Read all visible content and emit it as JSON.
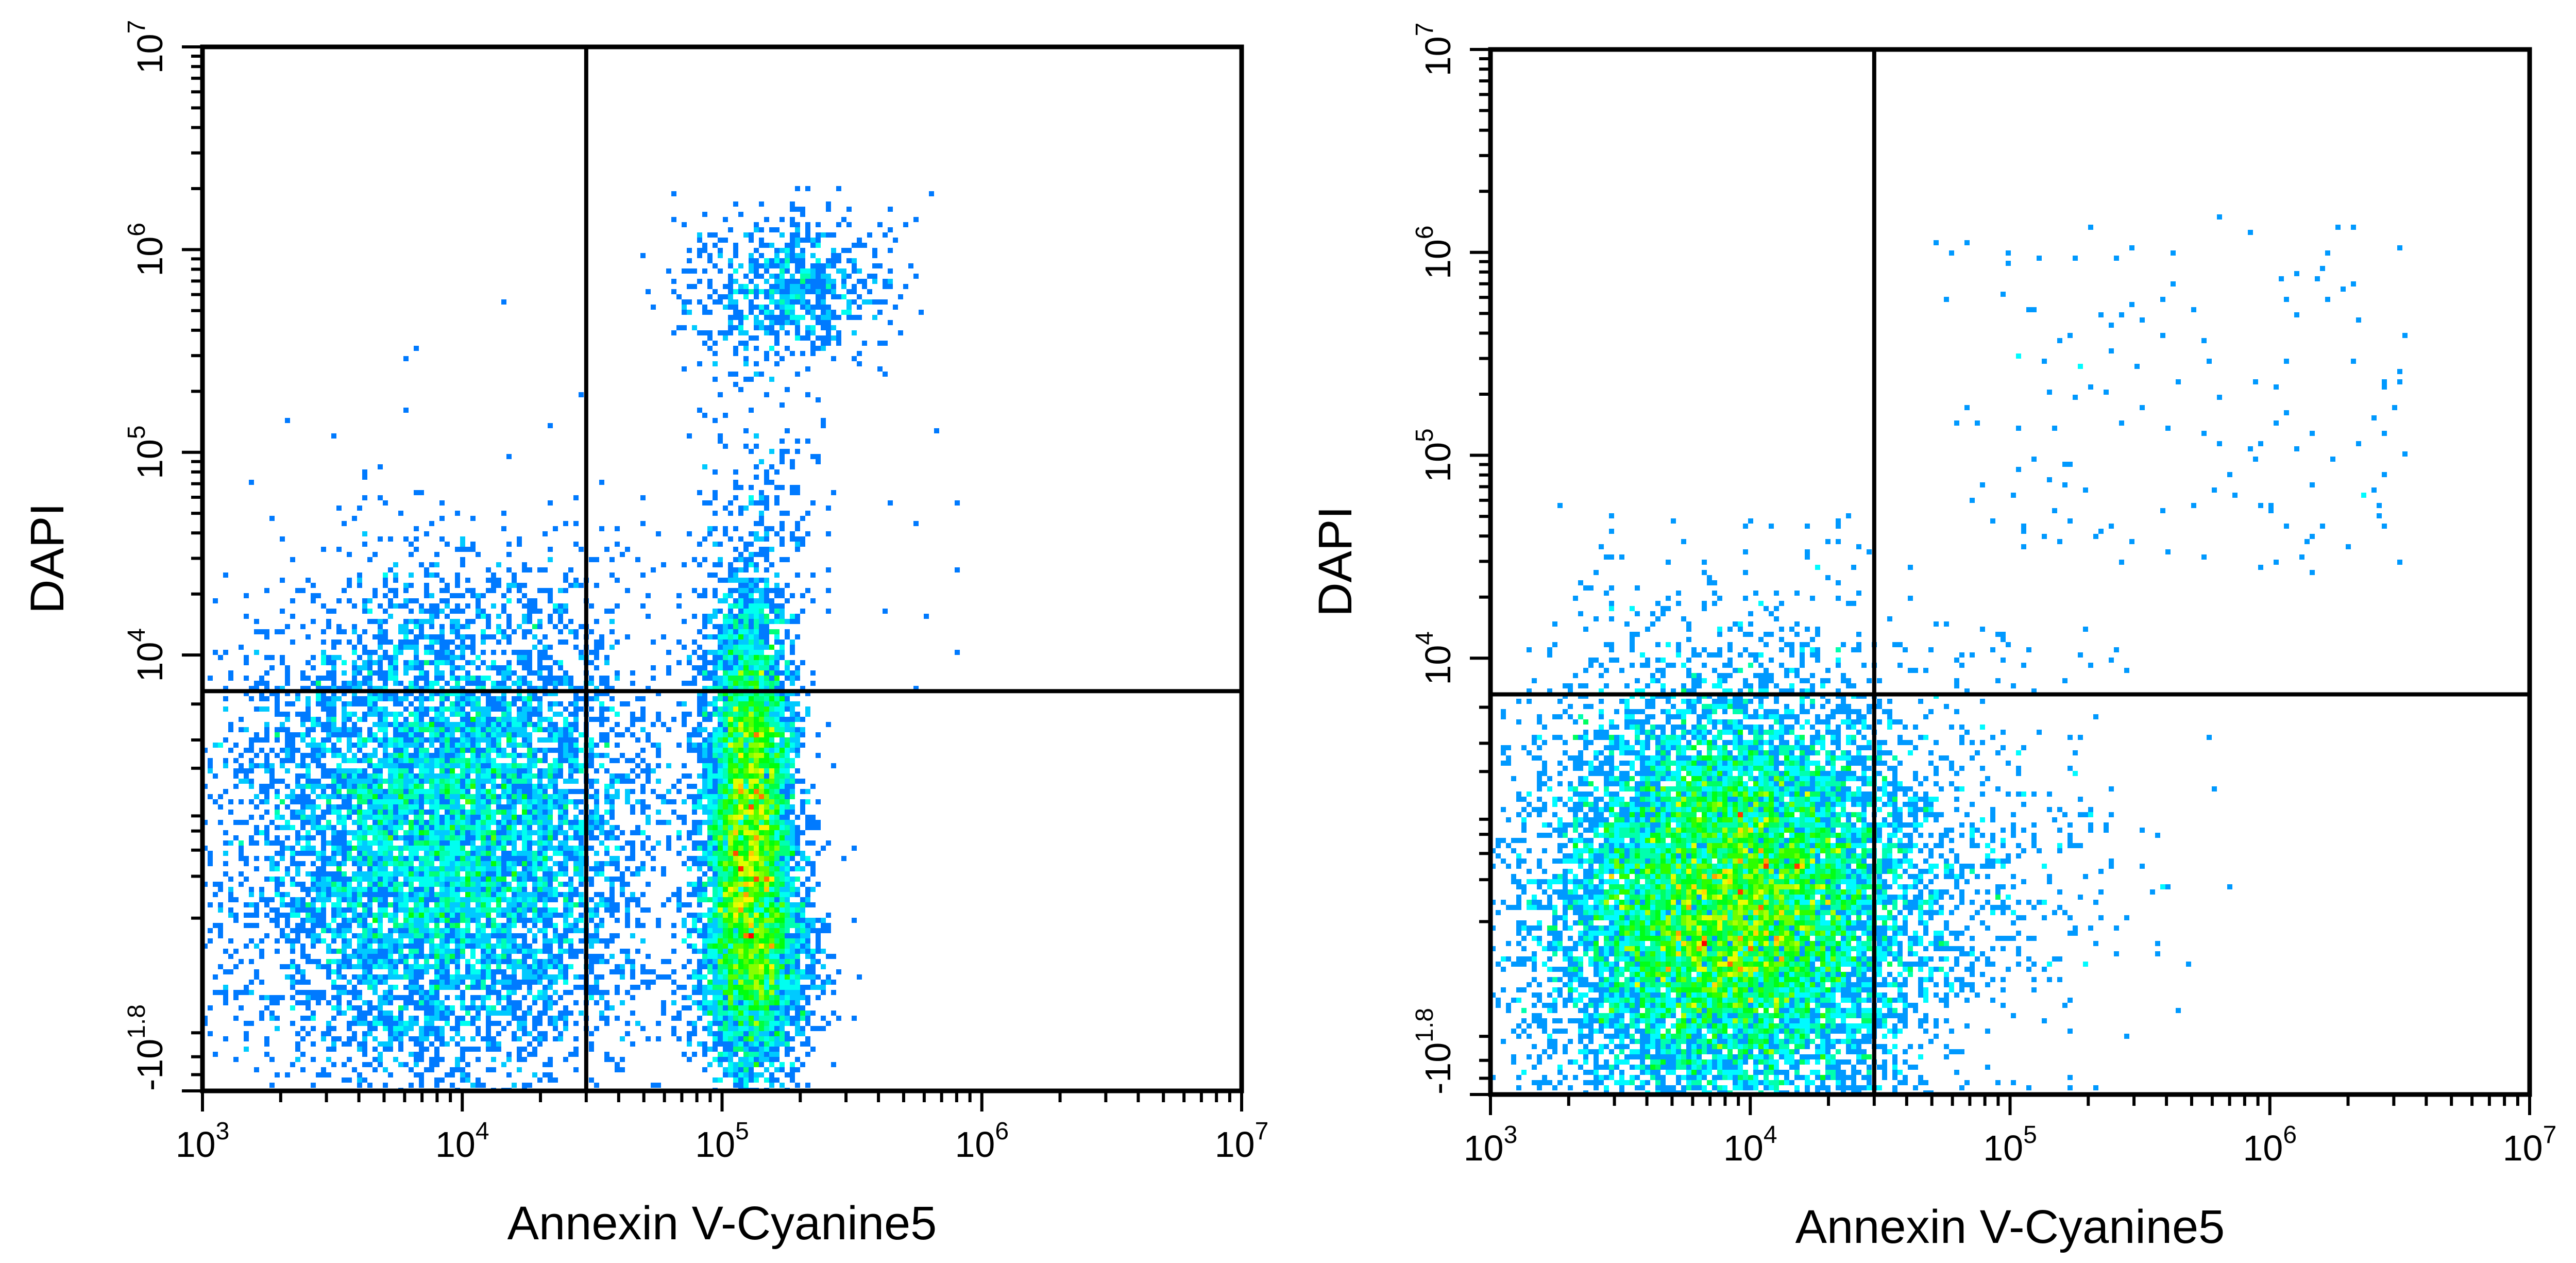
{
  "chart_data": [
    {
      "type": "scatter",
      "subtype": "flow-cytometry-density-dot-plot",
      "xlabel": "Annexin V-Cyanine5",
      "ylabel": "DAPI",
      "xscale": "log",
      "yscale": "biexponential",
      "xlim": [
        1000,
        10000000
      ],
      "ylim": [
        -63,
        10000000
      ],
      "x_ticks": [
        {
          "base": "10",
          "exp": "3"
        },
        {
          "base": "10",
          "exp": "4"
        },
        {
          "base": "10",
          "exp": "5"
        },
        {
          "base": "10",
          "exp": "6"
        },
        {
          "base": "10",
          "exp": "7"
        }
      ],
      "y_ticks": [
        {
          "base": "-10",
          "exp": "1.8"
        },
        {
          "base": "10",
          "exp": "4"
        },
        {
          "base": "10",
          "exp": "5"
        },
        {
          "base": "10",
          "exp": "6"
        },
        {
          "base": "10",
          "exp": "7"
        }
      ],
      "quadrant_gates": {
        "x": 30000,
        "y": 6000
      },
      "density_colormap": [
        "#0000ff",
        "#00ffff",
        "#00ff00",
        "#ffff00",
        "#ff0000"
      ],
      "grid": false,
      "legend": "none",
      "populations": [
        {
          "region": "lower-left",
          "x_center": 8500,
          "y_center": 400,
          "density": "high",
          "spread": "wide"
        },
        {
          "region": "lower-right",
          "x_center": 128000,
          "y_center": 700,
          "density": "very high",
          "spread": "narrow vertical"
        },
        {
          "region": "upper-right",
          "x_center": 140000,
          "y_center": 800000,
          "density": "medium",
          "spread": "small"
        },
        {
          "region": "upper-left",
          "density": "sparse"
        }
      ]
    },
    {
      "type": "scatter",
      "subtype": "flow-cytometry-density-dot-plot",
      "xlabel": "Annexin V-Cyanine5",
      "ylabel": "DAPI",
      "xscale": "log",
      "yscale": "biexponential",
      "xlim": [
        1000,
        10000000
      ],
      "ylim": [
        -63,
        10000000
      ],
      "x_ticks": [
        {
          "base": "10",
          "exp": "3"
        },
        {
          "base": "10",
          "exp": "4"
        },
        {
          "base": "10",
          "exp": "5"
        },
        {
          "base": "10",
          "exp": "6"
        },
        {
          "base": "10",
          "exp": "7"
        }
      ],
      "y_ticks": [
        {
          "base": "-10",
          "exp": "1.8"
        },
        {
          "base": "10",
          "exp": "4"
        },
        {
          "base": "10",
          "exp": "5"
        },
        {
          "base": "10",
          "exp": "6"
        },
        {
          "base": "10",
          "exp": "7"
        }
      ],
      "quadrant_gates": {
        "x": 30000,
        "y": 6000
      },
      "density_colormap": [
        "#0000ff",
        "#00ffff",
        "#00ff00",
        "#ffff00",
        "#ff0000"
      ],
      "grid": false,
      "legend": "none",
      "populations": [
        {
          "region": "lower-left",
          "x_center": 8500,
          "y_center": 250,
          "density": "very high",
          "spread": "wide"
        },
        {
          "region": "lower-right",
          "density": "sparse"
        },
        {
          "region": "upper-right",
          "density": "sparse"
        },
        {
          "region": "upper-left",
          "density": "sparse"
        }
      ]
    }
  ]
}
